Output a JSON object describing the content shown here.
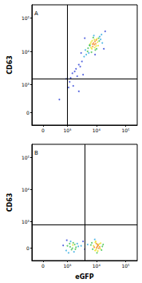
{
  "chart_data": [
    {
      "type": "scatter",
      "title": "A",
      "y_label": "CD63",
      "log": true,
      "xlim": [
        -300,
        250000
      ],
      "ylim": [
        -300,
        250000
      ],
      "xticks": [
        0,
        {
          "value": 1000,
          "label": "10³"
        },
        {
          "value": 10000,
          "label": "10⁴"
        },
        {
          "value": 100000,
          "label": "10⁵"
        }
      ],
      "yticks": [
        0,
        {
          "value": 1000,
          "label": "10³"
        },
        {
          "value": 10000,
          "label": "10⁴"
        },
        {
          "value": 100000,
          "label": "10⁵"
        }
      ],
      "quadrant": {
        "x": 1000,
        "y": 1500
      },
      "points": [
        [
          6000,
          15000
        ],
        [
          8000,
          18000
        ],
        [
          7000,
          12000
        ],
        [
          9000,
          20000
        ],
        [
          10000,
          22000
        ],
        [
          5000,
          10000
        ],
        [
          12000,
          25000
        ],
        [
          8500,
          16000
        ],
        [
          7500,
          14000
        ],
        [
          6500,
          13000
        ],
        [
          11000,
          19000
        ],
        [
          9500,
          17000
        ],
        [
          5500,
          9000
        ],
        [
          13000,
          28000
        ],
        [
          4500,
          8000
        ],
        [
          10500,
          24000
        ],
        [
          7200,
          21000
        ],
        [
          8800,
          13000
        ],
        [
          6200,
          17000
        ],
        [
          9200,
          11000
        ],
        [
          14000,
          23000
        ],
        [
          3800,
          7000
        ],
        [
          15000,
          32000
        ],
        [
          5200,
          12500
        ],
        [
          11500,
          15000
        ],
        [
          7800,
          26000
        ],
        [
          6800,
          9500
        ],
        [
          12500,
          20500
        ],
        [
          4200,
          11000
        ],
        [
          16000,
          18000
        ],
        [
          8200,
          30000
        ],
        [
          9800,
          14500
        ],
        [
          5800,
          15500
        ],
        [
          10200,
          12000
        ],
        [
          6600,
          19000
        ],
        [
          7400,
          16500
        ],
        [
          8600,
          22500
        ],
        [
          3200,
          5000
        ],
        [
          2500,
          4000
        ],
        [
          2000,
          3000
        ],
        [
          1800,
          2500
        ],
        [
          1500,
          2200
        ],
        [
          2800,
          3500
        ],
        [
          2200,
          1800
        ],
        [
          1300,
          1600
        ],
        [
          1200,
          1200
        ],
        [
          1600,
          900
        ],
        [
          2500,
          600
        ],
        [
          3500,
          2000
        ],
        [
          20000,
          40000
        ],
        [
          18000,
          12000
        ],
        [
          4000,
          25000
        ],
        [
          9000,
          8000
        ],
        [
          1100,
          800
        ],
        [
          900,
          1500
        ],
        [
          3000,
          9000
        ],
        [
          500,
          300
        ]
      ]
    },
    {
      "type": "scatter",
      "title": "B",
      "x_label": "eGFP",
      "y_label": "CD63",
      "log": true,
      "xlim": [
        -300,
        250000
      ],
      "ylim": [
        -300,
        250000
      ],
      "xticks": [
        0,
        {
          "value": 1000,
          "label": "10³"
        },
        {
          "value": 10000,
          "label": "10⁴"
        },
        {
          "value": 100000,
          "label": "10⁵"
        }
      ],
      "yticks": [
        0,
        {
          "value": 1000,
          "label": "10³"
        },
        {
          "value": 10000,
          "label": "10⁴"
        },
        {
          "value": 100000,
          "label": "10⁵"
        }
      ],
      "quadrant": {
        "x": 4000,
        "y": 800
      },
      "points": [
        [
          1000,
          50
        ],
        [
          1200,
          100
        ],
        [
          1500,
          0
        ],
        [
          1800,
          80
        ],
        [
          900,
          -50
        ],
        [
          1300,
          150
        ],
        [
          2000,
          20
        ],
        [
          1100,
          -100
        ],
        [
          1600,
          120
        ],
        [
          1400,
          -30
        ],
        [
          700,
          60
        ],
        [
          2200,
          100
        ],
        [
          1700,
          -80
        ],
        [
          1250,
          30
        ],
        [
          1900,
          -20
        ],
        [
          950,
          180
        ],
        [
          2400,
          40
        ],
        [
          1550,
          70
        ],
        [
          8000,
          50
        ],
        [
          10000,
          100
        ],
        [
          12000,
          0
        ],
        [
          9000,
          -50
        ],
        [
          11000,
          80
        ],
        [
          7000,
          120
        ],
        [
          13000,
          30
        ],
        [
          15000,
          -40
        ],
        [
          9500,
          150
        ],
        [
          10500,
          -100
        ],
        [
          8500,
          20
        ],
        [
          11500,
          60
        ],
        [
          14000,
          110
        ],
        [
          7500,
          -20
        ],
        [
          12500,
          90
        ],
        [
          16000,
          40
        ],
        [
          6500,
          70
        ],
        [
          10200,
          10
        ],
        [
          9200,
          130
        ],
        [
          11200,
          -60
        ],
        [
          13500,
          -10
        ],
        [
          8800,
          200
        ],
        [
          17000,
          80
        ],
        [
          10800,
          40
        ],
        [
          9800,
          -30
        ],
        [
          3000,
          50
        ],
        [
          4000,
          -20
        ],
        [
          5000,
          80
        ],
        [
          3500,
          150
        ]
      ]
    }
  ]
}
